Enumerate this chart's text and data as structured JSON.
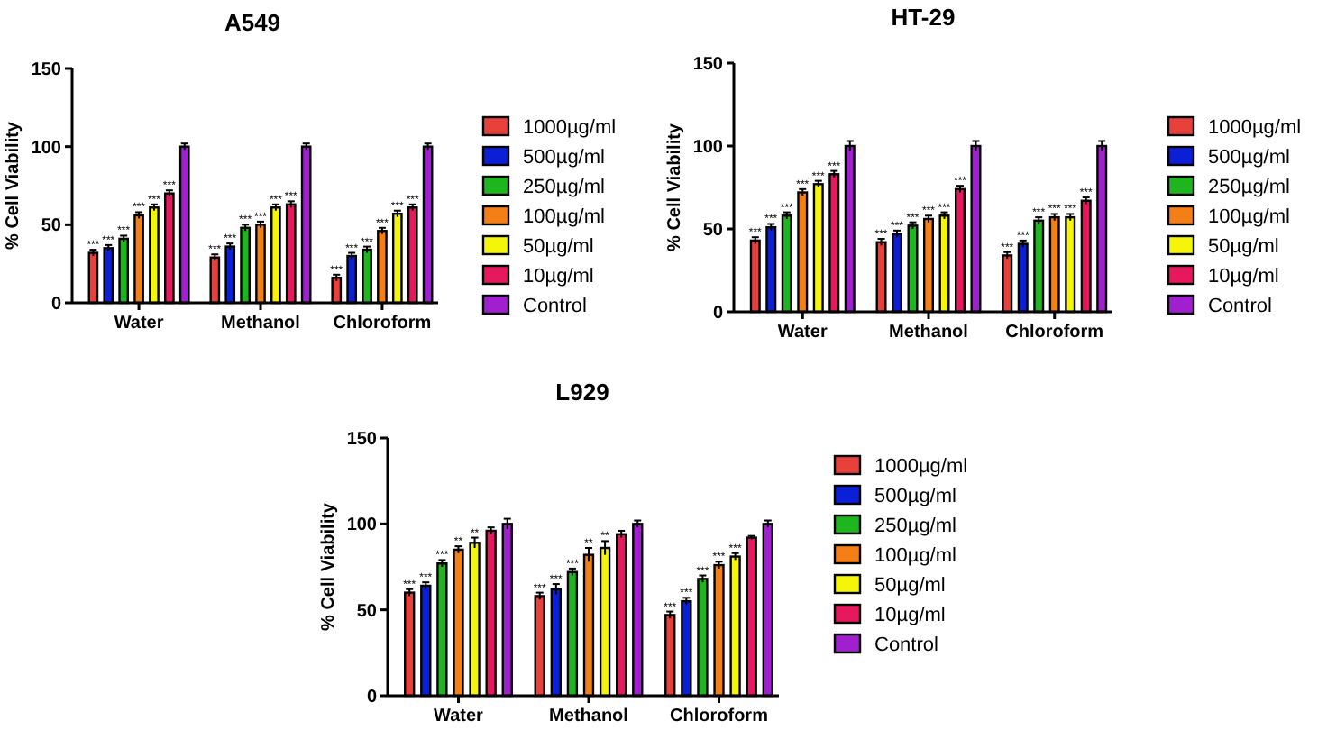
{
  "chart_data": [
    {
      "type": "bar",
      "title": "A549",
      "ylabel": "% Cell Viability",
      "categories": [
        "Water",
        "Methanol",
        "Chloroform"
      ],
      "ylim": [
        0,
        150
      ],
      "yticks": [
        0,
        50,
        100,
        150
      ],
      "legend": "right",
      "series": [
        {
          "name": "1000µg/ml",
          "color": "#e8413c",
          "values": [
            32,
            29,
            16
          ],
          "errors": [
            2,
            2,
            2
          ],
          "value_labels": [
            "***",
            "***",
            "***"
          ]
        },
        {
          "name": "500µg/ml",
          "color": "#0a1fd6",
          "values": [
            35,
            36,
            30
          ],
          "errors": [
            2,
            2,
            2
          ],
          "value_labels": [
            "***",
            "***",
            "***"
          ]
        },
        {
          "name": "250µg/ml",
          "color": "#1fb51f",
          "values": [
            41,
            48,
            34
          ],
          "errors": [
            2,
            2,
            2
          ],
          "value_labels": [
            "***",
            "***",
            "***"
          ]
        },
        {
          "name": "100µg/ml",
          "color": "#f57f17",
          "values": [
            56,
            50,
            46
          ],
          "errors": [
            2,
            2,
            2
          ],
          "value_labels": [
            "***",
            "***",
            "***"
          ]
        },
        {
          "name": "50µg/ml",
          "color": "#f5f50a",
          "values": [
            61,
            61,
            57
          ],
          "errors": [
            2,
            2,
            2
          ],
          "value_labels": [
            "***",
            "***",
            "***"
          ]
        },
        {
          "name": "10µg/ml",
          "color": "#e6195e",
          "values": [
            70,
            63,
            61
          ],
          "errors": [
            2,
            2,
            2
          ],
          "value_labels": [
            "***",
            "***",
            "***"
          ]
        },
        {
          "name": "Control",
          "color": "#a020d0",
          "values": [
            100,
            100,
            100
          ],
          "errors": [
            2,
            2,
            2
          ]
        }
      ]
    },
    {
      "type": "bar",
      "title": "HT-29",
      "ylabel": "% Cell Viability",
      "categories": [
        "Water",
        "Methanol",
        "Chloroform"
      ],
      "ylim": [
        0,
        150
      ],
      "yticks": [
        0,
        50,
        100,
        150
      ],
      "legend": "right",
      "series": [
        {
          "name": "1000µg/ml",
          "color": "#e8413c",
          "values": [
            43,
            42,
            34
          ],
          "errors": [
            2,
            2,
            2
          ],
          "value_labels": [
            "***",
            "***",
            "***"
          ]
        },
        {
          "name": "500µg/ml",
          "color": "#0a1fd6",
          "values": [
            51,
            47,
            41
          ],
          "errors": [
            2,
            2,
            2
          ],
          "value_labels": [
            "***",
            "***",
            "***"
          ]
        },
        {
          "name": "250µg/ml",
          "color": "#1fb51f",
          "values": [
            58,
            52,
            55
          ],
          "errors": [
            2,
            2,
            2
          ],
          "value_labels": [
            "***",
            "***",
            "***"
          ]
        },
        {
          "name": "100µg/ml",
          "color": "#f57f17",
          "values": [
            72,
            56,
            57
          ],
          "errors": [
            2,
            2,
            2
          ],
          "value_labels": [
            "***",
            "***",
            "***"
          ]
        },
        {
          "name": "50µg/ml",
          "color": "#f5f50a",
          "values": [
            77,
            58,
            57
          ],
          "errors": [
            2,
            2,
            2
          ],
          "value_labels": [
            "***",
            "***",
            "***"
          ]
        },
        {
          "name": "10µg/ml",
          "color": "#e6195e",
          "values": [
            83,
            74,
            67
          ],
          "errors": [
            2,
            2,
            2
          ],
          "value_labels": [
            "***",
            "***",
            "***"
          ]
        },
        {
          "name": "Control",
          "color": "#a020d0",
          "values": [
            100,
            100,
            100
          ],
          "errors": [
            3,
            3,
            3
          ]
        }
      ]
    },
    {
      "type": "bar",
      "title": "L929",
      "ylabel": "% Cell Viability",
      "categories": [
        "Water",
        "Methanol",
        "Chloroform"
      ],
      "ylim": [
        0,
        150
      ],
      "yticks": [
        0,
        50,
        100,
        150
      ],
      "legend": "right",
      "series": [
        {
          "name": "1000µg/ml",
          "color": "#e8413c",
          "values": [
            60,
            58,
            47
          ],
          "errors": [
            2,
            2,
            2
          ],
          "value_labels": [
            "***",
            "***",
            "***"
          ]
        },
        {
          "name": "500µg/ml",
          "color": "#0a1fd6",
          "values": [
            64,
            62,
            55
          ],
          "errors": [
            2,
            3,
            2
          ],
          "value_labels": [
            "***",
            "***",
            "***"
          ]
        },
        {
          "name": "250µg/ml",
          "color": "#1fb51f",
          "values": [
            77,
            72,
            68
          ],
          "errors": [
            2,
            2,
            2
          ],
          "value_labels": [
            "***",
            "***",
            "***"
          ]
        },
        {
          "name": "100µg/ml",
          "color": "#f57f17",
          "values": [
            85,
            82,
            76
          ],
          "errors": [
            2,
            4,
            2
          ],
          "value_labels": [
            "**",
            "**",
            "***"
          ]
        },
        {
          "name": "50µg/ml",
          "color": "#f5f50a",
          "values": [
            89,
            86,
            81
          ],
          "errors": [
            3,
            4,
            2
          ],
          "value_labels": [
            "**",
            "**",
            "***"
          ]
        },
        {
          "name": "10µg/ml",
          "color": "#e6195e",
          "values": [
            96,
            94,
            92
          ],
          "errors": [
            2,
            2,
            1
          ]
        },
        {
          "name": "Control",
          "color": "#a020d0",
          "values": [
            100,
            100,
            100
          ],
          "errors": [
            3,
            2,
            2
          ]
        }
      ]
    }
  ]
}
